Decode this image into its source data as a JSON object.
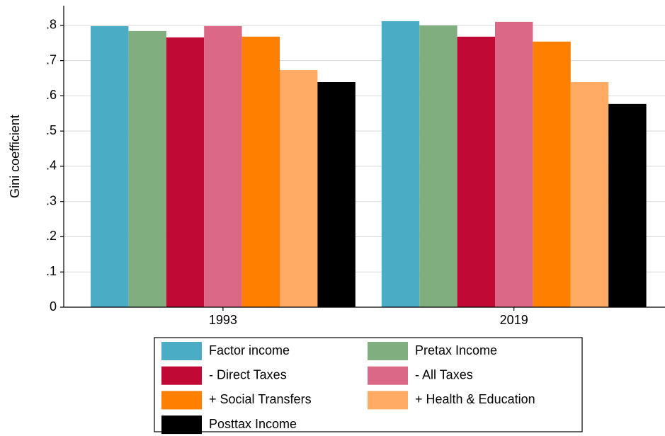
{
  "chart_data": {
    "type": "bar",
    "y_label": "Gini coefficient",
    "categories": [
      "1993",
      "2019"
    ],
    "series": [
      {
        "name": "Factor income",
        "color": "#4bacc6",
        "values": [
          0.798,
          0.812
        ]
      },
      {
        "name": "Pretax Income",
        "color": "#80ae7e",
        "values": [
          0.784,
          0.8
        ]
      },
      {
        "name": "- Direct Taxes",
        "color": "#c00a35",
        "values": [
          0.766,
          0.768
        ]
      },
      {
        "name": "- All Taxes",
        "color": "#db6985",
        "values": [
          0.798,
          0.81
        ]
      },
      {
        "name": "+ Social Transfers",
        "color": "#ff7f00",
        "values": [
          0.768,
          0.754
        ]
      },
      {
        "name": "+ Health & Education",
        "color": "#ffab63",
        "values": [
          0.673,
          0.639
        ]
      },
      {
        "name": "Posttax Income",
        "color": "#000000",
        "values": [
          0.639,
          0.577
        ]
      }
    ],
    "ylim": [
      0,
      0.856
    ],
    "yticks": [
      0,
      {
        "value": 0.1,
        "label": ".1"
      },
      {
        "value": 0.2,
        "label": ".2"
      },
      {
        "value": 0.3,
        "label": ".3"
      },
      {
        "value": 0.4,
        "label": ".4"
      },
      {
        "value": 0.5,
        "label": ".5"
      },
      {
        "value": 0.6,
        "label": ".6"
      },
      {
        "value": 0.7,
        "label": ".7"
      },
      {
        "value": 0.8,
        "label": ".8"
      }
    ],
    "grid": true
  }
}
